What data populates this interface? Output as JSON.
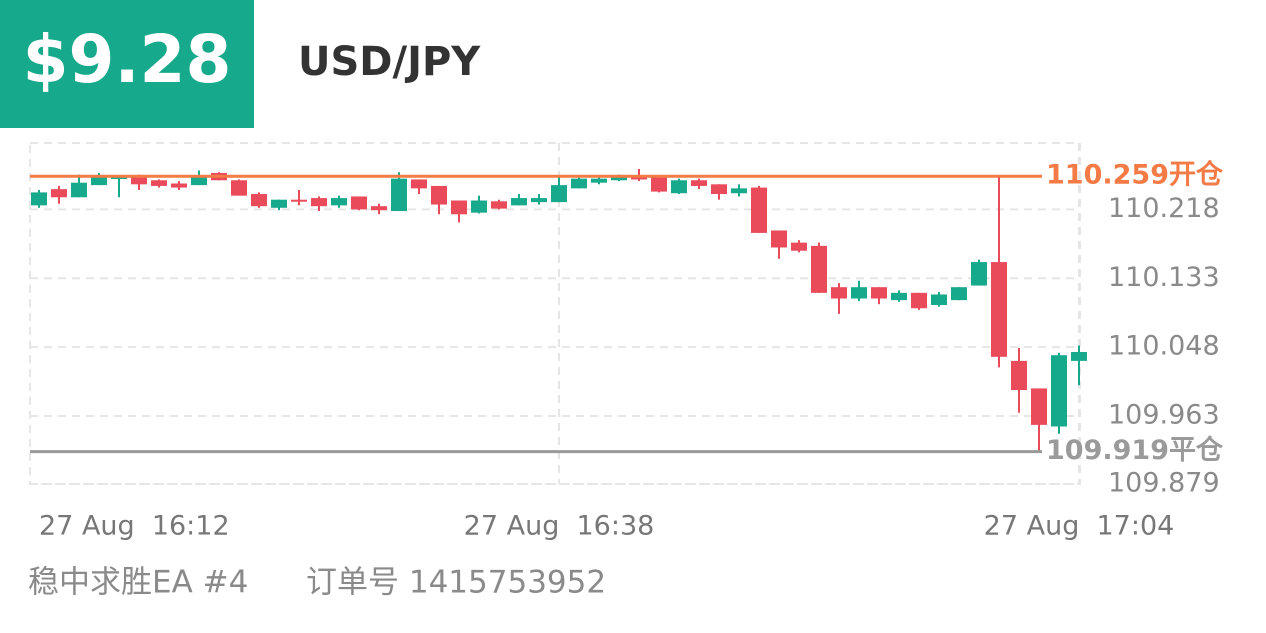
{
  "header": {
    "profit": "$9.28"
  },
  "chart_data": {
    "type": "candlestick",
    "title": "USD/JPY",
    "categories": [
      "27 Aug  16:12",
      null,
      null,
      null,
      null,
      null,
      null,
      null,
      null,
      null,
      null,
      null,
      null,
      null,
      null,
      null,
      null,
      null,
      null,
      null,
      null,
      null,
      null,
      null,
      null,
      null,
      "27 Aug  16:38",
      null,
      null,
      null,
      null,
      null,
      null,
      null,
      null,
      null,
      null,
      null,
      null,
      null,
      null,
      null,
      null,
      null,
      null,
      null,
      null,
      null,
      null,
      null,
      null,
      null,
      "27 Aug  17:04"
    ],
    "open": [
      110.223,
      110.243,
      110.233,
      110.248,
      110.256,
      110.259,
      110.254,
      110.25,
      110.248,
      110.263,
      110.254,
      110.237,
      110.22,
      110.23,
      110.232,
      110.223,
      110.234,
      110.222,
      110.216,
      110.255,
      110.247,
      110.229,
      110.214,
      110.228,
      110.223,
      110.227,
      110.227,
      110.244,
      110.251,
      110.254,
      110.26,
      110.258,
      110.238,
      110.254,
      110.249,
      110.238,
      110.245,
      110.192,
      110.177,
      110.173,
      110.122,
      110.108,
      110.122,
      110.106,
      110.115,
      110.1,
      110.106,
      110.124,
      110.153,
      110.031,
      109.997,
      109.95,
      110.031
    ],
    "high": [
      110.242,
      110.247,
      110.261,
      110.263,
      110.26,
      110.261,
      110.255,
      110.253,
      110.266,
      110.264,
      110.255,
      110.239,
      110.23,
      110.242,
      110.234,
      110.235,
      110.234,
      110.225,
      110.264,
      110.255,
      110.247,
      110.229,
      110.235,
      110.23,
      110.237,
      110.237,
      110.259,
      110.26,
      110.26,
      110.261,
      110.268,
      110.258,
      110.256,
      110.256,
      110.249,
      110.249,
      110.247,
      110.192,
      110.18,
      110.177,
      110.127,
      110.13,
      110.122,
      110.118,
      110.115,
      110.116,
      110.122,
      110.156,
      110.259,
      110.047,
      109.997,
      110.041,
      110.05
    ],
    "low": [
      110.22,
      110.225,
      110.233,
      110.248,
      110.233,
      110.242,
      110.245,
      110.242,
      110.248,
      110.254,
      110.235,
      110.22,
      110.217,
      110.223,
      110.216,
      110.22,
      110.217,
      110.212,
      110.216,
      110.237,
      110.212,
      110.202,
      110.213,
      110.218,
      110.223,
      110.224,
      110.227,
      110.244,
      110.249,
      110.253,
      110.253,
      110.239,
      110.237,
      110.243,
      110.23,
      110.234,
      110.189,
      110.157,
      110.165,
      110.115,
      110.089,
      110.105,
      110.101,
      110.104,
      110.094,
      110.098,
      110.106,
      110.124,
      110.023,
      109.967,
      109.919,
      109.941,
      110.001
    ],
    "close": [
      110.239,
      110.233,
      110.251,
      110.259,
      110.258,
      110.249,
      110.247,
      110.245,
      110.258,
      110.254,
      110.235,
      110.222,
      110.23,
      110.228,
      110.222,
      110.232,
      110.218,
      110.217,
      110.256,
      110.244,
      110.224,
      110.212,
      110.229,
      110.219,
      110.232,
      110.232,
      110.248,
      110.256,
      110.256,
      110.259,
      110.255,
      110.24,
      110.254,
      110.247,
      110.237,
      110.244,
      110.189,
      110.171,
      110.167,
      110.115,
      110.108,
      110.122,
      110.108,
      110.115,
      110.096,
      110.113,
      110.122,
      110.153,
      110.036,
      109.995,
      109.952,
      110.038,
      110.042
    ],
    "up_color": "#17a98b",
    "down_color": "#ea4b5b",
    "ylim": [
      109.879,
      110.3
    ],
    "yticks": [
      110.218,
      110.133,
      110.048,
      109.963,
      109.879
    ],
    "grid": true,
    "open_line": {
      "value": 110.259,
      "label": "110.259开仓",
      "color": "#f47b45"
    },
    "close_line": {
      "value": 109.919,
      "label": "109.919平仓",
      "color": "#9a9a9a"
    }
  },
  "footer": {
    "strategy": "稳中求胜EA #4",
    "order": "订单号 1415753952"
  }
}
